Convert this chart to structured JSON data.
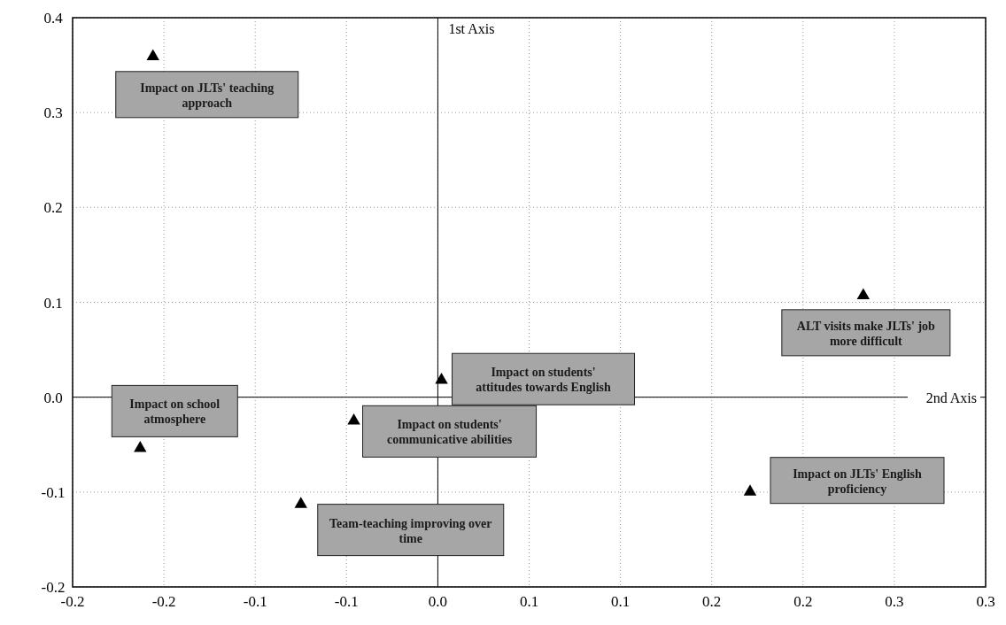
{
  "chart_data": {
    "type": "scatter",
    "xlabel": "2nd Axis",
    "ylabel": "1st Axis",
    "x": [
      -0.156,
      0.233,
      0.002,
      -0.163,
      -0.046,
      -0.075,
      0.171
    ],
    "values": [
      0.361,
      0.109,
      0.02,
      -0.052,
      -0.023,
      -0.111,
      -0.098
    ],
    "color": "#000000",
    "marker": "triangle",
    "grid": true,
    "xlim": [
      -0.2,
      0.3
    ],
    "ylim": [
      -0.2,
      0.4
    ],
    "xticks": [
      {
        "value": -0.2,
        "label": "-0.2"
      },
      {
        "value": -0.15,
        "label": "-0.2"
      },
      {
        "value": -0.1,
        "label": "-0.1"
      },
      {
        "value": -0.05,
        "label": "-0.1"
      },
      {
        "value": 0,
        "label": "0.0"
      },
      {
        "value": 0.05,
        "label": "0.1"
      },
      {
        "value": 0.1,
        "label": "0.1"
      },
      {
        "value": 0.15,
        "label": "0.2"
      },
      {
        "value": 0.2,
        "label": "0.2"
      },
      {
        "value": 0.25,
        "label": "0.3"
      },
      {
        "value": 0.3,
        "label": "0.3"
      }
    ],
    "yticks": [
      {
        "value": -0.2,
        "label": "-0.2"
      },
      {
        "value": -0.1,
        "label": "-0.1"
      },
      {
        "value": 0,
        "label": "0.0"
      },
      {
        "value": 0.1,
        "label": "0.1"
      },
      {
        "value": 0.2,
        "label": "0.2"
      },
      {
        "value": 0.3,
        "label": "0.3"
      },
      {
        "value": 0.4,
        "label": "0.4"
      }
    ],
    "annotations": [
      "Impact on JLTs' teaching approach",
      "ALT visits make JLTs' job more difficult",
      "Impact on students' attitudes towards English",
      "Impact on school atmosphere",
      "Impact on students' communicative abilities",
      "Team-teaching improving over time",
      "Impact on JLTs' English proficiency"
    ]
  }
}
